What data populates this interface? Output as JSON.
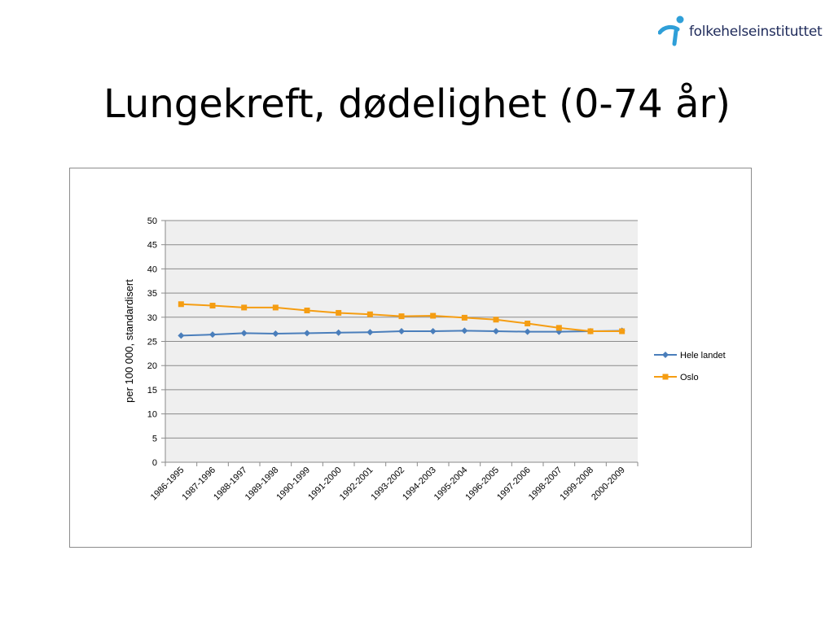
{
  "logo": {
    "text": "folkehelseinstituttet"
  },
  "slide": {
    "title": "Lungekreft, dødelighet (0-74 år)"
  },
  "chart_data": {
    "type": "line",
    "title": "",
    "xlabel": "",
    "ylabel": "per 100 000, standardisert",
    "ylim": [
      0,
      50
    ],
    "yticks": [
      0,
      5,
      10,
      15,
      20,
      25,
      30,
      35,
      40,
      45,
      50
    ],
    "grid": true,
    "legend_position": "right",
    "categories": [
      "1986-1995",
      "1987-1996",
      "1988-1997",
      "1989-1998",
      "1990-1999",
      "1991-2000",
      "1992-2001",
      "1993-2002",
      "1994-2003",
      "1995-2004",
      "1996-2005",
      "1997-2006",
      "1998-2007",
      "1999-2008",
      "2000-2009"
    ],
    "series": [
      {
        "name": "Hele landet",
        "color": "#4a7ebb",
        "marker": "diamond",
        "values": [
          26.2,
          26.4,
          26.7,
          26.6,
          26.7,
          26.8,
          26.9,
          27.1,
          27.1,
          27.2,
          27.1,
          27.0,
          27.0,
          27.1,
          27.2
        ]
      },
      {
        "name": "Oslo",
        "color": "#f59d12",
        "marker": "square",
        "values": [
          32.7,
          32.4,
          32.0,
          32.0,
          31.4,
          30.9,
          30.6,
          30.2,
          30.3,
          29.9,
          29.5,
          28.7,
          27.8,
          27.1,
          27.1
        ]
      }
    ]
  }
}
